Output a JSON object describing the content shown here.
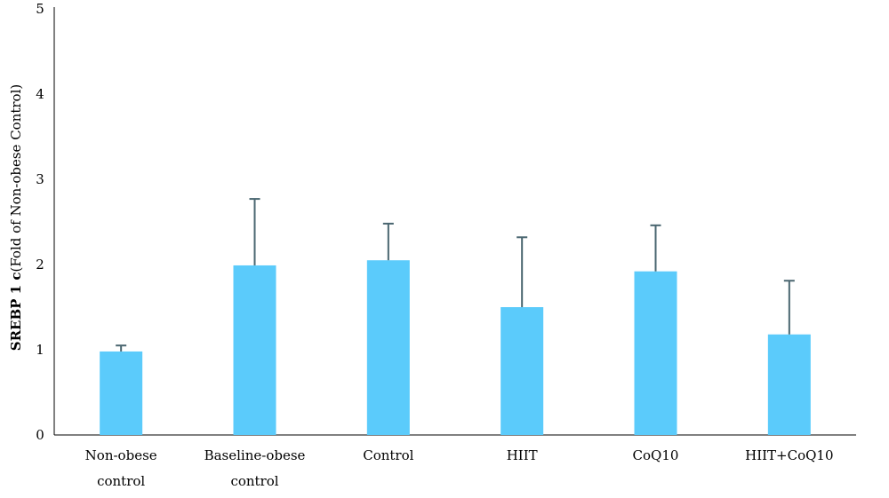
{
  "chart_data": {
    "type": "bar",
    "categories": [
      [
        "Non-obese",
        "control"
      ],
      [
        "Baseline-obese",
        "control"
      ],
      [
        "Control"
      ],
      [
        "HIIT"
      ],
      [
        "CoQ10"
      ],
      [
        "HIIT+CoQ10"
      ]
    ],
    "values": [
      0.98,
      1.99,
      2.05,
      1.5,
      1.92,
      1.18
    ],
    "errors": [
      0.07,
      0.78,
      0.43,
      0.82,
      0.54,
      0.63
    ],
    "ylabel_bold": "SREBP 1 c",
    "ylabel_rest": "(Fold of Non-obese Control)",
    "ylim": [
      0,
      5
    ],
    "yticks": [
      0,
      1,
      2,
      3,
      4,
      5
    ],
    "bar_color": "#5bcbfb",
    "error_color": "#4a6670",
    "grid": false
  }
}
